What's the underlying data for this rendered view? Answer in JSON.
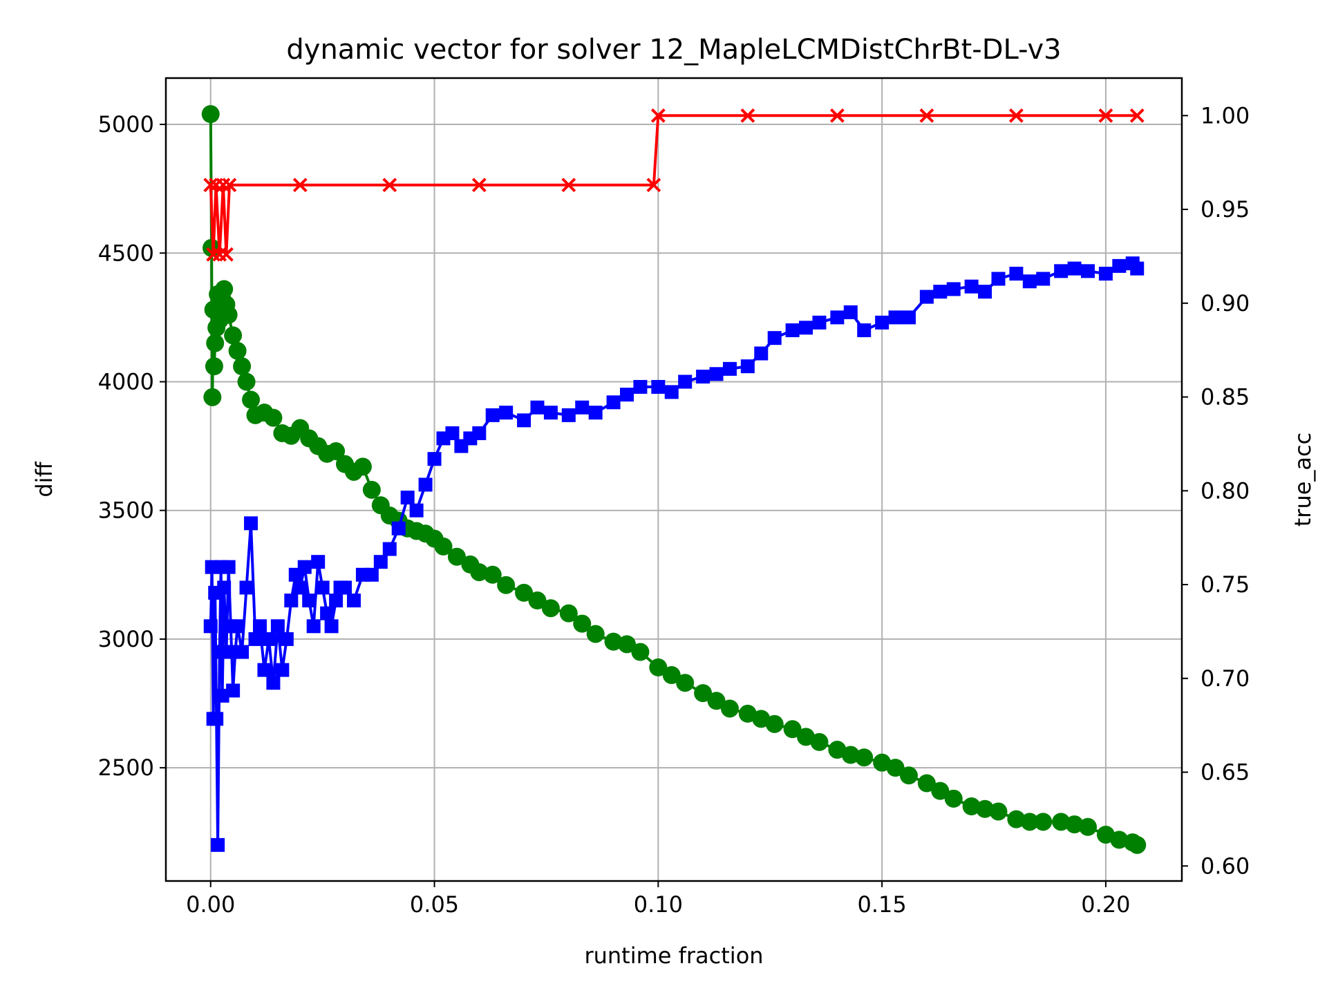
{
  "chart_data": {
    "type": "line",
    "title": "dynamic vector for solver 12_MapleLCMDistChrBt-DL-v3",
    "xlabel": "runtime fraction",
    "ylabel_left": "diff",
    "ylabel_right": "true_acc",
    "xlim": [
      -0.01,
      0.217
    ],
    "ylim_left": [
      2060,
      5180
    ],
    "ylim_right": [
      0.592,
      1.02
    ],
    "x_ticks": [
      "0.00",
      "0.05",
      "0.10",
      "0.15",
      "0.20"
    ],
    "x_tick_values": [
      0.0,
      0.05,
      0.1,
      0.15,
      0.2
    ],
    "y_left_ticks": [
      "2500",
      "3000",
      "3500",
      "4000",
      "4500",
      "5000"
    ],
    "y_left_tick_values": [
      2500,
      3000,
      3500,
      4000,
      4500,
      5000
    ],
    "y_right_ticks": [
      "0.60",
      "0.65",
      "0.70",
      "0.75",
      "0.80",
      "0.85",
      "0.90",
      "0.95",
      "1.00"
    ],
    "y_right_tick_values": [
      0.6,
      0.65,
      0.7,
      0.75,
      0.8,
      0.85,
      0.9,
      0.95,
      1.0
    ],
    "grid": true,
    "colors": {
      "diff": "#008000",
      "blue_series": "#0000ff",
      "true_acc": "#ff0000",
      "ylabel_left": "#008000",
      "ylabel_right": "#ff0000"
    },
    "series": [
      {
        "axis": "left",
        "marker": "circle",
        "color": "#008000",
        "x": [
          0.0,
          0.0002,
          0.0004,
          0.0006,
          0.0008,
          0.001,
          0.0013,
          0.0016,
          0.002,
          0.0025,
          0.003,
          0.0035,
          0.004,
          0.005,
          0.006,
          0.007,
          0.008,
          0.009,
          0.01,
          0.012,
          0.014,
          0.016,
          0.018,
          0.02,
          0.022,
          0.024,
          0.026,
          0.028,
          0.03,
          0.032,
          0.034,
          0.036,
          0.038,
          0.04,
          0.042,
          0.044,
          0.046,
          0.048,
          0.05,
          0.052,
          0.055,
          0.058,
          0.06,
          0.063,
          0.066,
          0.07,
          0.073,
          0.076,
          0.08,
          0.083,
          0.086,
          0.09,
          0.093,
          0.096,
          0.1,
          0.103,
          0.106,
          0.11,
          0.113,
          0.116,
          0.12,
          0.123,
          0.126,
          0.13,
          0.133,
          0.136,
          0.14,
          0.143,
          0.146,
          0.15,
          0.153,
          0.156,
          0.16,
          0.163,
          0.166,
          0.17,
          0.173,
          0.176,
          0.18,
          0.183,
          0.186,
          0.19,
          0.193,
          0.196,
          0.2,
          0.203,
          0.206,
          0.207
        ],
        "y": [
          5040,
          4520,
          3940,
          4280,
          4060,
          4150,
          4210,
          4340,
          4240,
          4330,
          4360,
          4300,
          4260,
          4180,
          4120,
          4060,
          4000,
          3930,
          3870,
          3880,
          3860,
          3800,
          3790,
          3820,
          3780,
          3750,
          3720,
          3730,
          3680,
          3650,
          3670,
          3580,
          3520,
          3480,
          3460,
          3430,
          3420,
          3410,
          3390,
          3360,
          3320,
          3290,
          3260,
          3250,
          3210,
          3180,
          3150,
          3120,
          3100,
          3060,
          3020,
          2990,
          2980,
          2950,
          2890,
          2860,
          2830,
          2790,
          2760,
          2730,
          2710,
          2690,
          2670,
          2650,
          2620,
          2600,
          2570,
          2550,
          2540,
          2520,
          2500,
          2470,
          2440,
          2410,
          2380,
          2350,
          2340,
          2330,
          2300,
          2290,
          2290,
          2290,
          2280,
          2270,
          2240,
          2220,
          2210,
          2200
        ]
      },
      {
        "axis": "left",
        "marker": "square",
        "color": "#0000ff",
        "x": [
          0.0,
          0.0003,
          0.0006,
          0.001,
          0.0013,
          0.0016,
          0.002,
          0.0023,
          0.0026,
          0.003,
          0.0035,
          0.004,
          0.0045,
          0.005,
          0.0055,
          0.006,
          0.007,
          0.008,
          0.009,
          0.01,
          0.011,
          0.012,
          0.013,
          0.014,
          0.015,
          0.016,
          0.017,
          0.018,
          0.019,
          0.02,
          0.021,
          0.022,
          0.023,
          0.024,
          0.025,
          0.026,
          0.027,
          0.028,
          0.029,
          0.03,
          0.032,
          0.034,
          0.036,
          0.038,
          0.04,
          0.042,
          0.044,
          0.046,
          0.048,
          0.05,
          0.052,
          0.054,
          0.056,
          0.058,
          0.06,
          0.063,
          0.066,
          0.07,
          0.073,
          0.076,
          0.08,
          0.083,
          0.086,
          0.09,
          0.093,
          0.096,
          0.1,
          0.103,
          0.106,
          0.11,
          0.113,
          0.116,
          0.12,
          0.123,
          0.126,
          0.13,
          0.133,
          0.136,
          0.14,
          0.143,
          0.146,
          0.15,
          0.153,
          0.156,
          0.16,
          0.163,
          0.166,
          0.17,
          0.173,
          0.176,
          0.18,
          0.183,
          0.186,
          0.19,
          0.193,
          0.196,
          0.2,
          0.203,
          0.206,
          0.207
        ],
        "y": [
          3050,
          3280,
          2690,
          3180,
          2690,
          2200,
          2950,
          3280,
          2780,
          3200,
          2950,
          3280,
          3050,
          2800,
          2950,
          3050,
          2950,
          3200,
          3450,
          3000,
          3050,
          2880,
          3000,
          2830,
          3050,
          2880,
          3000,
          3150,
          3250,
          3200,
          3280,
          3150,
          3050,
          3300,
          3200,
          3100,
          3050,
          3150,
          3200,
          3200,
          3150,
          3250,
          3250,
          3300,
          3350,
          3430,
          3550,
          3500,
          3600,
          3700,
          3780,
          3800,
          3750,
          3780,
          3800,
          3870,
          3880,
          3850,
          3900,
          3880,
          3870,
          3900,
          3880,
          3920,
          3950,
          3980,
          3980,
          3960,
          4000,
          4020,
          4030,
          4050,
          4060,
          4110,
          4170,
          4200,
          4210,
          4230,
          4250,
          4270,
          4200,
          4230,
          4250,
          4250,
          4330,
          4350,
          4360,
          4370,
          4350,
          4400,
          4420,
          4390,
          4400,
          4430,
          4440,
          4430,
          4420,
          4450,
          4460,
          4440
        ]
      },
      {
        "axis": "right",
        "marker": "x",
        "color": "#ff0000",
        "x": [
          0.0,
          0.0006,
          0.0012,
          0.002,
          0.0028,
          0.0035,
          0.0042,
          0.02,
          0.04,
          0.06,
          0.08,
          0.099,
          0.1,
          0.12,
          0.14,
          0.16,
          0.18,
          0.2,
          0.207
        ],
        "y": [
          0.963,
          0.926,
          0.963,
          0.926,
          0.963,
          0.926,
          0.963,
          0.963,
          0.963,
          0.963,
          0.963,
          0.963,
          1.0,
          1.0,
          1.0,
          1.0,
          1.0,
          1.0,
          1.0
        ]
      }
    ]
  }
}
